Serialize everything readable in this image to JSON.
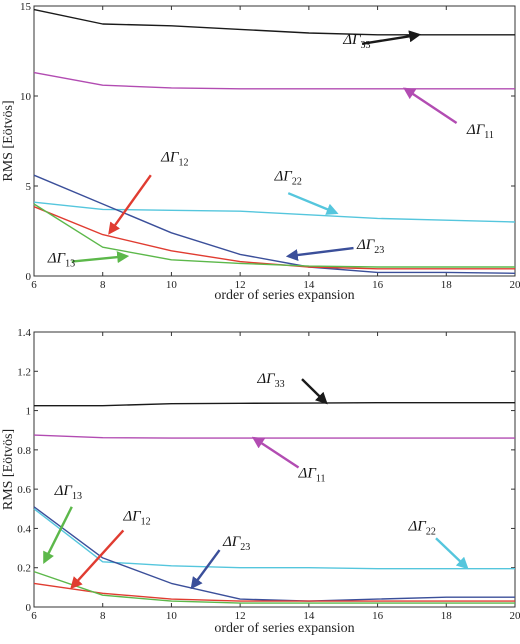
{
  "chart_data": [
    {
      "type": "line",
      "xlabel": "order of series expansion",
      "ylabel": "RMS [Eötvös]",
      "xlim": [
        6,
        20
      ],
      "ylim": [
        0,
        15
      ],
      "x_ticks": [
        6,
        8,
        10,
        12,
        14,
        16,
        18,
        20
      ],
      "y_ticks": [
        0,
        5,
        10,
        15
      ],
      "grid": false,
      "series": [
        {
          "name": "ΔΓ33",
          "color": "#1a1a1a",
          "x": [
            6,
            8,
            10,
            12,
            14,
            16,
            18,
            20
          ],
          "values": [
            14.8,
            14.0,
            13.9,
            13.7,
            13.5,
            13.4,
            13.4,
            13.4
          ]
        },
        {
          "name": "ΔΓ11",
          "color": "#b24cb2",
          "x": [
            6,
            8,
            10,
            12,
            14,
            16,
            18,
            20
          ],
          "values": [
            11.3,
            10.6,
            10.45,
            10.4,
            10.4,
            10.4,
            10.4,
            10.4
          ]
        },
        {
          "name": "ΔΓ22",
          "color": "#55c6dd",
          "x": [
            6,
            8,
            10,
            12,
            14,
            16,
            18,
            20
          ],
          "values": [
            4.1,
            3.7,
            3.65,
            3.6,
            3.4,
            3.2,
            3.1,
            3.0
          ]
        },
        {
          "name": "ΔΓ23",
          "color": "#3b4f9a",
          "x": [
            6,
            8,
            10,
            12,
            14,
            16,
            18,
            20
          ],
          "values": [
            5.6,
            4.0,
            2.4,
            1.2,
            0.5,
            0.2,
            0.2,
            0.15
          ]
        },
        {
          "name": "ΔΓ12",
          "color": "#e03c31",
          "x": [
            6,
            8,
            10,
            12,
            14,
            16,
            18,
            20
          ],
          "values": [
            3.85,
            2.3,
            1.4,
            0.8,
            0.5,
            0.4,
            0.4,
            0.4
          ]
        },
        {
          "name": "ΔΓ13",
          "color": "#5cb84a",
          "x": [
            6,
            8,
            10,
            12,
            14,
            16,
            18,
            20
          ],
          "values": [
            4.0,
            1.6,
            0.9,
            0.7,
            0.55,
            0.5,
            0.5,
            0.5
          ]
        }
      ],
      "annotations": [
        {
          "series": "ΔΓ33",
          "main": "ΔΓ",
          "sub": "33",
          "text_at": [
            15.0,
            12.9
          ],
          "arrow_from": [
            15.55,
            12.9
          ],
          "arrow_to": [
            17.2,
            13.4
          ]
        },
        {
          "series": "ΔΓ11",
          "main": "ΔΓ",
          "sub": "11",
          "text_at": [
            18.6,
            7.9
          ],
          "arrow_from": [
            18.3,
            8.5
          ],
          "arrow_to": [
            16.8,
            10.4
          ]
        },
        {
          "series": "ΔΓ22",
          "main": "ΔΓ",
          "sub": "22",
          "text_at": [
            13.0,
            5.3
          ],
          "arrow_from": [
            13.4,
            4.6
          ],
          "arrow_to": [
            14.8,
            3.5
          ]
        },
        {
          "series": "ΔΓ23",
          "main": "ΔΓ",
          "sub": "23",
          "text_at": [
            15.4,
            1.5
          ],
          "arrow_from": [
            15.3,
            1.55
          ],
          "arrow_to": [
            13.4,
            1.1
          ]
        },
        {
          "series": "ΔΓ12",
          "main": "ΔΓ",
          "sub": "12",
          "text_at": [
            9.7,
            6.35
          ],
          "arrow_from": [
            9.4,
            5.6
          ],
          "arrow_to": [
            8.2,
            2.4
          ]
        },
        {
          "series": "ΔΓ13",
          "main": "ΔΓ",
          "sub": "13",
          "text_at": [
            6.4,
            0.75
          ],
          "arrow_from": [
            7.1,
            0.8
          ],
          "arrow_to": [
            8.7,
            1.1
          ]
        }
      ]
    },
    {
      "type": "line",
      "xlabel": "order of series expansion",
      "ylabel": "RMS [Eötvös]",
      "xlim": [
        6,
        20
      ],
      "ylim": [
        0,
        1.4
      ],
      "x_ticks": [
        6,
        8,
        10,
        12,
        14,
        16,
        18,
        20
      ],
      "y_ticks": [
        0,
        0.2,
        0.4,
        0.6,
        0.8,
        1,
        1.2,
        1.4
      ],
      "grid": false,
      "series": [
        {
          "name": "ΔΓ33",
          "color": "#1a1a1a",
          "x": [
            6,
            8,
            10,
            12,
            14,
            16,
            18,
            20
          ],
          "values": [
            1.025,
            1.025,
            1.035,
            1.037,
            1.038,
            1.04,
            1.04,
            1.04
          ]
        },
        {
          "name": "ΔΓ11",
          "color": "#b24cb2",
          "x": [
            6,
            8,
            10,
            12,
            14,
            16,
            18,
            20
          ],
          "values": [
            0.875,
            0.862,
            0.86,
            0.86,
            0.86,
            0.86,
            0.86,
            0.86
          ]
        },
        {
          "name": "ΔΓ22",
          "color": "#55c6dd",
          "x": [
            6,
            8,
            10,
            12,
            14,
            16,
            18,
            20
          ],
          "values": [
            0.5,
            0.23,
            0.21,
            0.2,
            0.2,
            0.195,
            0.195,
            0.195
          ]
        },
        {
          "name": "ΔΓ23",
          "color": "#3b4f9a",
          "x": [
            6,
            8,
            10,
            12,
            14,
            16,
            18,
            20
          ],
          "values": [
            0.51,
            0.25,
            0.12,
            0.04,
            0.03,
            0.04,
            0.05,
            0.05
          ]
        },
        {
          "name": "ΔΓ12",
          "color": "#e03c31",
          "x": [
            6,
            8,
            10,
            12,
            14,
            16,
            18,
            20
          ],
          "values": [
            0.12,
            0.07,
            0.04,
            0.03,
            0.03,
            0.03,
            0.03,
            0.03
          ]
        },
        {
          "name": "ΔΓ13",
          "color": "#5cb84a",
          "x": [
            6,
            8,
            10,
            12,
            14,
            16,
            18,
            20
          ],
          "values": [
            0.18,
            0.06,
            0.03,
            0.02,
            0.02,
            0.02,
            0.02,
            0.02
          ]
        }
      ],
      "annotations": [
        {
          "series": "ΔΓ33",
          "main": "ΔΓ",
          "sub": "33",
          "text_at": [
            12.5,
            1.14
          ],
          "arrow_from": [
            13.8,
            1.16
          ],
          "arrow_to": [
            14.5,
            1.04
          ]
        },
        {
          "series": "ΔΓ11",
          "main": "ΔΓ",
          "sub": "11",
          "text_at": [
            13.7,
            0.66
          ],
          "arrow_from": [
            13.7,
            0.71
          ],
          "arrow_to": [
            12.4,
            0.86
          ]
        },
        {
          "series": "ΔΓ22",
          "main": "ΔΓ",
          "sub": "22",
          "text_at": [
            16.9,
            0.39
          ],
          "arrow_from": [
            17.7,
            0.35
          ],
          "arrow_to": [
            18.6,
            0.2
          ]
        },
        {
          "series": "ΔΓ23",
          "main": "ΔΓ",
          "sub": "23",
          "text_at": [
            11.5,
            0.31
          ],
          "arrow_from": [
            11.4,
            0.29
          ],
          "arrow_to": [
            10.6,
            0.1
          ]
        },
        {
          "series": "ΔΓ13",
          "main": "ΔΓ",
          "sub": "13",
          "text_at": [
            6.6,
            0.57
          ],
          "arrow_from": [
            7.1,
            0.51
          ],
          "arrow_to": [
            6.3,
            0.23
          ]
        },
        {
          "series": "ΔΓ12",
          "main": "ΔΓ",
          "sub": "12",
          "text_at": [
            8.6,
            0.44
          ],
          "arrow_from": [
            8.6,
            0.39
          ],
          "arrow_to": [
            7.1,
            0.1
          ]
        }
      ]
    }
  ]
}
